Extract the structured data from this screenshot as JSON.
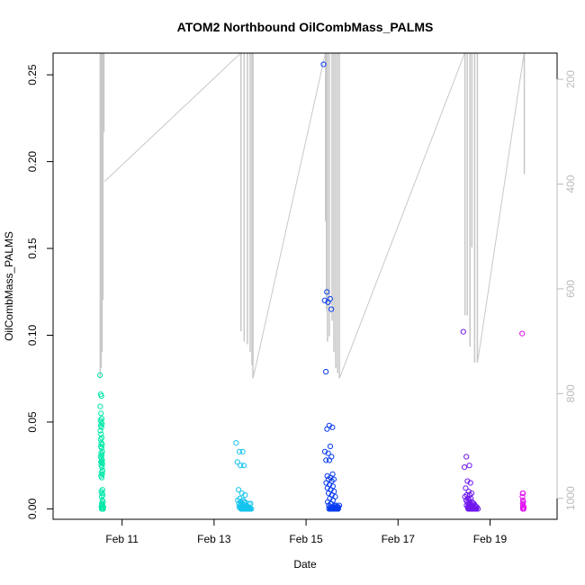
{
  "chart_data": {
    "type": "scatter",
    "title": "ATOM2 Northbound OilCombMass_PALMS",
    "xlabel": "Date",
    "ylabel": "OilCombMass_PALMS",
    "xlim": [
      "2017-02-09 12:00",
      "2017-02-20 11:00"
    ],
    "ylim": [
      -0.006,
      0.2625
    ],
    "x_ticks": [
      {
        "label": "Feb 11",
        "x": "2017-02-11"
      },
      {
        "label": "Feb 13",
        "x": "2017-02-13"
      },
      {
        "label": "Feb 15",
        "x": "2017-02-15"
      },
      {
        "label": "Feb 17",
        "x": "2017-02-17"
      },
      {
        "label": "Feb 19",
        "x": "2017-02-19"
      }
    ],
    "y_ticks": [
      {
        "label": "0.00",
        "y": 0.0
      },
      {
        "label": "0.05",
        "y": 0.05
      },
      {
        "label": "0.10",
        "y": 0.1
      },
      {
        "label": "0.15",
        "y": 0.15
      },
      {
        "label": "0.20",
        "y": 0.2
      },
      {
        "label": "0.25",
        "y": 0.25
      }
    ],
    "right_axis": {
      "note": "pressure axis (reversed), drawn in light gray",
      "range": [
        1040,
        150
      ],
      "ticks": [
        {
          "label": "200",
          "v": 200
        },
        {
          "label": "400",
          "v": 400
        },
        {
          "label": "600",
          "v": 600
        },
        {
          "label": "800",
          "v": 800
        },
        {
          "label": "1000",
          "v": 1000
        }
      ]
    },
    "grid": false,
    "colors": {
      "point_palette": [
        "#00ffaa",
        "#00c8f0",
        "#0040ff",
        "#7a00f0",
        "#ff00ff"
      ],
      "profile_line": "#c8c8c8"
    },
    "flights": [
      {
        "day": "2017-02-10",
        "color": "#00e8a8",
        "t_start": 0.52,
        "t_end": 0.6,
        "values": [
          0.077,
          0.066,
          0.065,
          0.059,
          0.055,
          0.052,
          0.051,
          0.05,
          0.049,
          0.048,
          0.047,
          0.045,
          0.043,
          0.041,
          0.04,
          0.038,
          0.037,
          0.036,
          0.035,
          0.033,
          0.032,
          0.031,
          0.03,
          0.029,
          0.028,
          0.027,
          0.027,
          0.026,
          0.025,
          0.024,
          0.022,
          0.021,
          0.02,
          0.019,
          0.018,
          0.011,
          0.01,
          0.009,
          0.008,
          0.007,
          0.005,
          0.004,
          0.003,
          0.002,
          0.001,
          0.0,
          0.0,
          0.0,
          0.001,
          0.0,
          0.002,
          0.0,
          0.001,
          0.0,
          0.0,
          0.003,
          0.0,
          0.001
        ]
      },
      {
        "day": "2017-02-13",
        "color": "#14c4ee",
        "t_start": 0.48,
        "t_end": 0.85,
        "values": [
          0.038,
          0.033,
          0.033,
          0.027,
          0.025,
          0.025,
          0.011,
          0.009,
          0.008,
          0.006,
          0.005,
          0.005,
          0.004,
          0.004,
          0.003,
          0.003,
          0.002,
          0.002,
          0.002,
          0.002,
          0.001,
          0.001,
          0.001,
          0.001,
          0.001,
          0.001,
          0.001,
          0.001,
          0.0,
          0.0,
          0.0,
          0.0,
          0.0,
          0.0,
          0.0,
          0.0,
          0.0,
          0.0,
          0.0,
          0.0,
          0.0,
          0.0,
          0.0,
          0.0,
          0.0,
          0.0,
          0.003,
          0.002,
          0.001,
          0.0,
          0.004,
          0.001,
          0.0,
          0.002,
          0.0,
          0.001,
          0.0,
          0.003,
          0.0,
          0.001
        ]
      },
      {
        "day": "2017-02-15",
        "color": "#0a3cf0",
        "t_start": 0.38,
        "t_end": 0.76,
        "values": [
          0.256,
          0.125,
          0.121,
          0.12,
          0.119,
          0.115,
          0.079,
          0.048,
          0.047,
          0.046,
          0.036,
          0.033,
          0.032,
          0.03,
          0.028,
          0.028,
          0.02,
          0.019,
          0.018,
          0.017,
          0.017,
          0.016,
          0.015,
          0.014,
          0.013,
          0.012,
          0.011,
          0.01,
          0.009,
          0.008,
          0.007,
          0.006,
          0.005,
          0.004,
          0.003,
          0.002,
          0.002,
          0.001,
          0.001,
          0.001,
          0.001,
          0.0,
          0.0,
          0.0,
          0.0,
          0.0,
          0.0,
          0.0,
          0.0,
          0.0,
          0.0,
          0.0,
          0.0,
          0.0,
          0.0,
          0.0,
          0.0,
          0.0,
          0.0,
          0.0,
          0.0,
          0.001,
          0.0,
          0.002,
          0.0,
          0.001,
          0.0,
          0.0,
          0.001,
          0.0,
          0.002
        ]
      },
      {
        "day": "2017-02-18",
        "color": "#7018ee",
        "t_start": 0.42,
        "t_end": 0.76,
        "values": [
          0.102,
          0.03,
          0.025,
          0.024,
          0.016,
          0.015,
          0.012,
          0.01,
          0.009,
          0.008,
          0.008,
          0.007,
          0.006,
          0.006,
          0.005,
          0.005,
          0.004,
          0.004,
          0.003,
          0.003,
          0.003,
          0.002,
          0.002,
          0.002,
          0.002,
          0.001,
          0.001,
          0.001,
          0.001,
          0.001,
          0.0,
          0.0,
          0.0,
          0.0,
          0.0,
          0.0,
          0.0,
          0.0,
          0.0,
          0.0,
          0.0,
          0.0,
          0.0,
          0.0,
          0.0,
          0.002,
          0.001,
          0.0,
          0.003,
          0.001,
          0.0,
          0.002,
          0.0,
          0.001,
          0.0
        ]
      },
      {
        "day": "2017-02-19",
        "color": "#e010f0",
        "t_start": 0.7,
        "t_end": 0.74,
        "values": [
          0.101,
          0.009,
          0.009,
          0.007,
          0.005,
          0.004,
          0.003,
          0.002,
          0.001,
          0.001,
          0.0,
          0.0,
          0.0,
          0.0,
          0.0,
          0.0,
          0.001,
          0.0
        ]
      }
    ],
    "altitude_profile": [
      {
        "day": "2017-02-10",
        "descents": [
          {
            "t": 0.52,
            "p": 770
          },
          {
            "t": 0.54,
            "p": 750
          },
          {
            "t": 0.56,
            "p": 720
          },
          {
            "t": 0.58,
            "p": 620
          },
          {
            "t": 0.6,
            "p": 300
          }
        ],
        "cruise_end": {
          "t": 0.61,
          "p": 395
        }
      },
      {
        "day": "2017-02-13",
        "descents": [
          {
            "t": 0.58,
            "p": 680
          },
          {
            "t": 0.65,
            "p": 700
          },
          {
            "t": 0.72,
            "p": 705
          },
          {
            "t": 0.78,
            "p": 720
          },
          {
            "t": 0.82,
            "p": 745
          },
          {
            "t": 0.84,
            "p": 770
          }
        ]
      },
      {
        "day": "2017-02-15",
        "descents": [
          {
            "t": 0.42,
            "p": 470
          },
          {
            "t": 0.44,
            "p": 640
          },
          {
            "t": 0.46,
            "p": 700
          },
          {
            "t": 0.5,
            "p": 690
          },
          {
            "t": 0.56,
            "p": 660
          },
          {
            "t": 0.6,
            "p": 720
          },
          {
            "t": 0.64,
            "p": 750
          },
          {
            "t": 0.68,
            "p": 760
          },
          {
            "t": 0.72,
            "p": 770
          }
        ]
      },
      {
        "day": "2017-02-18",
        "descents": [
          {
            "t": 0.45,
            "p": 650
          },
          {
            "t": 0.5,
            "p": 650
          },
          {
            "t": 0.56,
            "p": 710
          },
          {
            "t": 0.6,
            "p": 520
          },
          {
            "t": 0.66,
            "p": 740
          },
          {
            "t": 0.72,
            "p": 740
          }
        ]
      },
      {
        "day": "2017-02-19",
        "descents": [
          {
            "t": 0.74,
            "p": 380
          }
        ]
      }
    ]
  }
}
